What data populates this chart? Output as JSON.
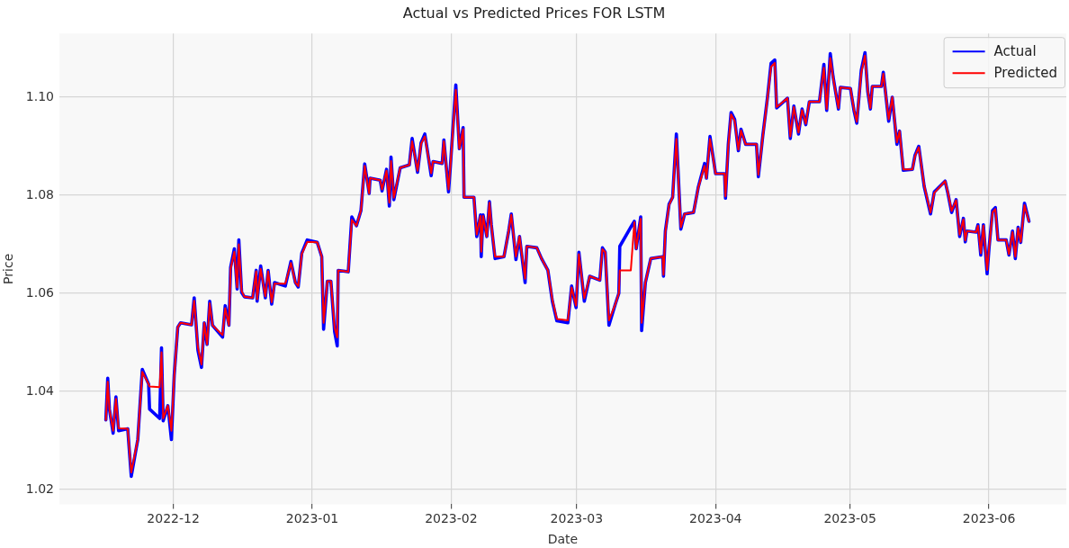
{
  "chart_data": {
    "type": "line",
    "title": "Actual vs Predicted Prices FOR LSTM",
    "xlabel": "Date",
    "ylabel": "Price",
    "x": [
      "2022-11-15T23:00",
      "2022-11-16T09:00",
      "2022-11-16T18:00",
      "2022-11-17T14:00",
      "2022-11-18T05:00",
      "2022-11-18T19:00",
      "2022-11-20T20:00",
      "2022-11-21T15:00",
      "2022-11-23T02:00",
      "2022-11-24T02:00",
      "2022-11-25T12:00",
      "2022-11-25T17:00",
      "2022-11-27T23:00",
      "2022-11-28T09:00",
      "2022-11-28T18:00",
      "2022-11-29T19:00",
      "2022-11-30T14:00",
      "2022-12-01T05:00",
      "2022-12-02T00:00",
      "2022-12-02T15:00",
      "2022-12-05T02:00",
      "2022-12-05T16:00",
      "2022-12-06T12:00",
      "2022-12-07T07:00",
      "2022-12-07T22:00",
      "2022-12-08T13:00",
      "2022-12-09T03:00",
      "2022-12-09T18:00",
      "2022-12-12T00:00",
      "2022-12-12T14:00",
      "2022-12-13T10:00",
      "2022-12-13T19:00",
      "2022-12-14T15:00",
      "2022-12-15T06:00",
      "2022-12-15T15:00",
      "2022-12-16T06:00",
      "2022-12-16T21:00",
      "2022-12-18T17:00",
      "2022-12-19T12:00",
      "2022-12-19T17:00",
      "2022-12-20T12:00",
      "2022-12-21T13:00",
      "2022-12-22T04:00",
      "2022-12-22T23:00",
      "2022-12-23T14:00",
      "2022-12-26T00:00",
      "2022-12-27T06:00",
      "2022-12-28T06:00",
      "2022-12-28T21:00",
      "2022-12-29T16:00",
      "2022-12-30T21:00",
      "2023-01-02T03:00",
      "2023-01-03T03:00",
      "2023-01-03T13:00",
      "2023-01-04T09:00",
      "2023-01-05T04:00",
      "2023-01-06T00:00",
      "2023-01-06T14:00",
      "2023-01-06T19:00",
      "2023-01-09T01:00",
      "2023-01-09T20:00",
      "2023-01-10T21:00",
      "2023-01-11T21:00",
      "2023-01-12T17:00",
      "2023-01-13T17:00",
      "2023-01-13T22:00",
      "2023-01-16T04:00",
      "2023-01-16T14:00",
      "2023-01-17T14:00",
      "2023-01-18T05:00",
      "2023-01-18T14:00",
      "2023-01-19T05:00",
      "2023-01-20T15:00",
      "2023-01-22T16:00",
      "2023-01-23T07:00",
      "2023-01-24T12:00",
      "2023-01-25T07:00",
      "2023-01-26T03:00",
      "2023-01-26T22:00",
      "2023-01-27T13:00",
      "2023-01-27T23:00",
      "2023-01-30T00:00",
      "2023-01-30T09:00",
      "2023-01-31T10:00",
      "2023-01-31T20:00",
      "2023-02-02T01:00",
      "2023-02-02T20:00",
      "2023-02-03T16:00",
      "2023-02-03T21:00",
      "2023-02-06T02:00",
      "2023-02-06T17:00",
      "2023-02-07T13:00",
      "2023-02-07T17:00",
      "2023-02-08T03:00",
      "2023-02-08T23:00",
      "2023-02-09T13:00",
      "2023-02-09T23:00",
      "2023-02-10T19:00",
      "2023-02-12T19:00",
      "2023-02-13T20:00",
      "2023-02-14T10:00",
      "2023-02-15T11:00",
      "2023-02-16T06:00",
      "2023-02-17T12:00",
      "2023-02-17T21:00",
      "2023-02-20T03:00",
      "2023-02-21T04:00",
      "2023-02-22T14:00",
      "2023-02-23T14:00",
      "2023-02-24T14:00",
      "2023-02-27T01:00",
      "2023-02-27T21:00",
      "2023-02-28T21:00",
      "2023-03-01T12:00",
      "2023-03-02T17:00",
      "2023-03-03T22:00",
      "2023-03-06T04:00",
      "2023-03-06T18:00",
      "2023-03-07T09:00",
      "2023-03-08T05:00",
      "2023-03-09T15:00",
      "2023-03-10T10:00",
      "2023-03-10T15:00",
      "2023-03-13T02:00",
      "2023-03-13T21:00",
      "2023-03-14T07:00",
      "2023-03-15T07:00",
      "2023-03-15T12:00",
      "2023-03-16T08:00",
      "2023-03-17T13:00",
      "2023-03-20T05:00",
      "2023-03-20T09:00",
      "2023-03-20T19:00",
      "2023-03-21T15:00",
      "2023-03-22T10:00",
      "2023-03-23T06:00",
      "2023-03-24T06:00",
      "2023-03-25T02:00",
      "2023-03-27T02:00",
      "2023-03-28T03:00",
      "2023-03-29T13:00",
      "2023-03-29T23:00",
      "2023-03-30T18:00",
      "2023-04-01T00:00",
      "2023-04-03T00:00",
      "2023-04-03T05:00",
      "2023-04-03T20:00",
      "2023-04-04T11:00",
      "2023-04-05T06:00",
      "2023-04-06T02:00",
      "2023-04-06T16:00",
      "2023-04-07T17:00",
      "2023-04-10T03:00",
      "2023-04-10T13:00",
      "2023-04-11T13:00",
      "2023-04-12T14:00",
      "2023-04-13T09:00",
      "2023-04-14T05:00",
      "2023-04-14T15:00",
      "2023-04-17T01:00",
      "2023-04-17T16:00",
      "2023-04-18T11:00",
      "2023-04-19T12:00",
      "2023-04-20T07:00",
      "2023-04-21T03:00",
      "2023-04-21T22:00",
      "2023-04-24T04:00",
      "2023-04-25T04:00",
      "2023-04-25T19:00",
      "2023-04-26T14:00",
      "2023-04-27T05:00",
      "2023-04-28T10:00",
      "2023-04-28T20:00",
      "2023-05-01T02:00",
      "2023-05-01T21:00",
      "2023-05-02T12:00",
      "2023-05-03T12:00",
      "2023-05-04T08:00",
      "2023-05-04T23:00",
      "2023-05-05T13:00",
      "2023-05-05T23:00",
      "2023-05-08T00:00",
      "2023-05-08T10:00",
      "2023-05-09T15:00",
      "2023-05-10T10:00",
      "2023-05-11T11:00",
      "2023-05-12T01:00",
      "2023-05-12T21:00",
      "2023-05-14T22:00",
      "2023-05-15T12:00",
      "2023-05-16T08:00",
      "2023-05-17T13:00",
      "2023-05-18T23:00",
      "2023-05-19T19:00",
      "2023-05-22T05:00",
      "2023-05-22T20:00",
      "2023-05-23T16:00",
      "2023-05-24T16:00",
      "2023-05-25T11:00",
      "2023-05-26T07:00",
      "2023-05-26T17:00",
      "2023-05-27T02:00",
      "2023-05-29T03:00",
      "2023-05-29T13:00",
      "2023-05-30T04:00",
      "2023-05-30T18:00",
      "2023-05-31T14:00",
      "2023-06-01T00:00",
      "2023-06-01T19:00",
      "2023-06-02T10:00",
      "2023-06-03T00:00",
      "2023-06-04T20:00",
      "2023-06-05T11:00",
      "2023-06-06T06:00",
      "2023-06-06T21:00",
      "2023-06-07T12:00",
      "2023-06-08T02:00",
      "2023-06-08T22:00",
      "2023-06-09T22:00"
    ],
    "series": [
      {
        "name": "Actual",
        "color": "#0000ff",
        "values": [
          1.0342,
          1.0427,
          1.0364,
          1.0315,
          1.0389,
          1.032,
          1.0324,
          1.0227,
          1.0302,
          1.0445,
          1.0415,
          1.0364,
          1.0345,
          1.0489,
          1.034,
          1.0371,
          1.0302,
          1.0433,
          1.0531,
          1.054,
          1.0536,
          1.0591,
          1.0484,
          1.0449,
          1.054,
          1.0496,
          1.0584,
          1.0535,
          1.0511,
          1.0575,
          1.0535,
          1.0653,
          1.0691,
          1.0609,
          1.0709,
          1.0602,
          1.0593,
          1.0591,
          1.0647,
          1.0584,
          1.0656,
          1.0591,
          1.0647,
          1.0578,
          1.0622,
          1.0615,
          1.0665,
          1.0622,
          1.0613,
          1.0682,
          1.0709,
          1.0704,
          1.0675,
          1.0527,
          1.0625,
          1.0625,
          1.0522,
          1.0493,
          1.0647,
          1.0644,
          1.0756,
          1.0738,
          1.0769,
          1.0864,
          1.0804,
          1.0835,
          1.0831,
          1.0809,
          1.0853,
          1.0778,
          1.0878,
          1.0791,
          1.0856,
          1.0862,
          1.0916,
          1.0847,
          1.0907,
          1.0925,
          1.0878,
          1.084,
          1.0869,
          1.0865,
          1.0913,
          1.0807,
          1.086,
          1.1025,
          1.0895,
          1.0938,
          1.0796,
          1.0796,
          1.0716,
          1.076,
          1.0675,
          1.076,
          1.0716,
          1.0787,
          1.074,
          1.0671,
          1.0675,
          1.0727,
          1.0762,
          1.0669,
          1.0716,
          1.0622,
          1.0696,
          1.0693,
          1.0671,
          1.0647,
          1.0584,
          1.0544,
          1.054,
          1.0615,
          1.0571,
          1.0684,
          1.0584,
          1.0635,
          1.0627,
          1.0693,
          1.0684,
          1.0535,
          1.0578,
          1.06,
          1.0696,
          1.0735,
          1.0747,
          1.0691,
          1.0756,
          1.0524,
          1.0622,
          1.0671,
          1.0675,
          1.0635,
          1.0727,
          1.0782,
          1.0796,
          1.0925,
          1.0731,
          1.0762,
          1.0765,
          1.0816,
          1.0865,
          1.0835,
          1.092,
          1.0844,
          1.0844,
          1.0794,
          1.0904,
          1.0969,
          1.0955,
          1.0891,
          1.0935,
          1.0904,
          1.0904,
          1.0838,
          1.0922,
          1.1,
          1.1069,
          1.1076,
          1.0978,
          1.0998,
          1.0916,
          1.0982,
          1.0925,
          1.0976,
          1.0944,
          1.0991,
          1.0991,
          1.1067,
          1.0973,
          1.1089,
          1.1042,
          1.0976,
          1.102,
          1.1018,
          1.0973,
          1.0947,
          1.1055,
          1.1091,
          1.1011,
          1.0976,
          1.1022,
          1.1022,
          1.1051,
          1.0951,
          1.1,
          1.0904,
          1.0931,
          1.0851,
          1.0853,
          1.0882,
          1.09,
          1.0818,
          1.0762,
          1.0807,
          1.0829,
          1.0804,
          1.0765,
          1.0791,
          1.0716,
          1.0753,
          1.0705,
          1.0727,
          1.0725,
          1.074,
          1.0678,
          1.074,
          1.064,
          1.0691,
          1.0769,
          1.0775,
          1.0709,
          1.0709,
          1.0678,
          1.0727,
          1.0671,
          1.0735,
          1.0704,
          1.0784,
          1.0747
        ]
      },
      {
        "name": "Predicted",
        "color": "#ff0000",
        "values": [
          1.0342,
          1.042,
          1.0364,
          1.032,
          1.0385,
          1.0325,
          1.0324,
          1.0235,
          1.0302,
          1.044,
          1.0415,
          1.041,
          1.0409,
          1.048,
          1.0345,
          1.0371,
          1.032,
          1.043,
          1.0531,
          1.054,
          1.0536,
          1.0585,
          1.049,
          1.0455,
          1.054,
          1.0496,
          1.058,
          1.0535,
          1.0515,
          1.057,
          1.0535,
          1.065,
          1.0685,
          1.0612,
          1.07,
          1.0605,
          1.0593,
          1.0591,
          1.0645,
          1.0588,
          1.065,
          1.0594,
          1.0645,
          1.0582,
          1.062,
          1.062,
          1.0662,
          1.0622,
          1.0615,
          1.068,
          1.0705,
          1.0704,
          1.0675,
          1.054,
          1.0625,
          1.0625,
          1.053,
          1.051,
          1.0647,
          1.0644,
          1.075,
          1.0738,
          1.0769,
          1.086,
          1.0804,
          1.0835,
          1.0831,
          1.0812,
          1.085,
          1.0785,
          1.087,
          1.0795,
          1.0856,
          1.0862,
          1.091,
          1.085,
          1.0905,
          1.092,
          1.0878,
          1.0845,
          1.0869,
          1.0865,
          1.091,
          1.0812,
          1.086,
          1.1015,
          1.0895,
          1.0935,
          1.0796,
          1.0796,
          1.072,
          1.0758,
          1.0685,
          1.0758,
          1.0716,
          1.0785,
          1.074,
          1.0675,
          1.0675,
          1.0727,
          1.076,
          1.0675,
          1.0716,
          1.063,
          1.0696,
          1.0693,
          1.0671,
          1.0647,
          1.0587,
          1.0548,
          1.0545,
          1.0612,
          1.0575,
          1.068,
          1.059,
          1.0635,
          1.0627,
          1.069,
          1.0684,
          1.0545,
          1.0578,
          1.06,
          1.0647,
          1.0647,
          1.0745,
          1.0691,
          1.0752,
          1.054,
          1.0622,
          1.0671,
          1.0675,
          1.0638,
          1.0725,
          1.078,
          1.0796,
          1.0915,
          1.0735,
          1.0762,
          1.0765,
          1.0815,
          1.086,
          1.0835,
          1.0915,
          1.0844,
          1.0844,
          1.0798,
          1.09,
          1.0965,
          1.0952,
          1.0893,
          1.0932,
          1.0904,
          1.0904,
          1.0842,
          1.092,
          1.0998,
          1.1062,
          1.107,
          1.098,
          1.0998,
          1.092,
          1.098,
          1.0928,
          1.0974,
          1.0946,
          1.0991,
          1.0991,
          1.106,
          1.0976,
          1.108,
          1.104,
          1.0978,
          1.102,
          1.1018,
          1.0975,
          1.095,
          1.105,
          1.1085,
          1.1013,
          1.0978,
          1.1022,
          1.1022,
          1.1048,
          1.0955,
          1.1,
          1.0908,
          1.0931,
          1.0853,
          1.0853,
          1.088,
          1.0898,
          1.082,
          1.0765,
          1.0805,
          1.0829,
          1.0806,
          1.0768,
          1.079,
          1.072,
          1.0751,
          1.0708,
          1.0727,
          1.0725,
          1.0738,
          1.0682,
          1.0738,
          1.0648,
          1.069,
          1.0765,
          1.0772,
          1.0709,
          1.0709,
          1.068,
          1.0725,
          1.0675,
          1.0733,
          1.0705,
          1.078,
          1.0747
        ]
      }
    ],
    "xlim": [
      "2022-11-05T14:00",
      "2023-06-18T06:00"
    ],
    "xticks": [
      "2022-12",
      "2023-01",
      "2023-02",
      "2023-03",
      "2023-04",
      "2023-05",
      "2023-06"
    ],
    "ylim": [
      1.017,
      1.113
    ],
    "yticks": [
      {
        "value": 1.02,
        "label": "1.02"
      },
      {
        "value": 1.04,
        "label": "1.04"
      },
      {
        "value": 1.06,
        "label": "1.06"
      },
      {
        "value": 1.08,
        "label": "1.08"
      },
      {
        "value": 1.1,
        "label": "1.10"
      }
    ],
    "grid": true,
    "legend": "top right",
    "marker": "none",
    "line_style": "solid"
  }
}
